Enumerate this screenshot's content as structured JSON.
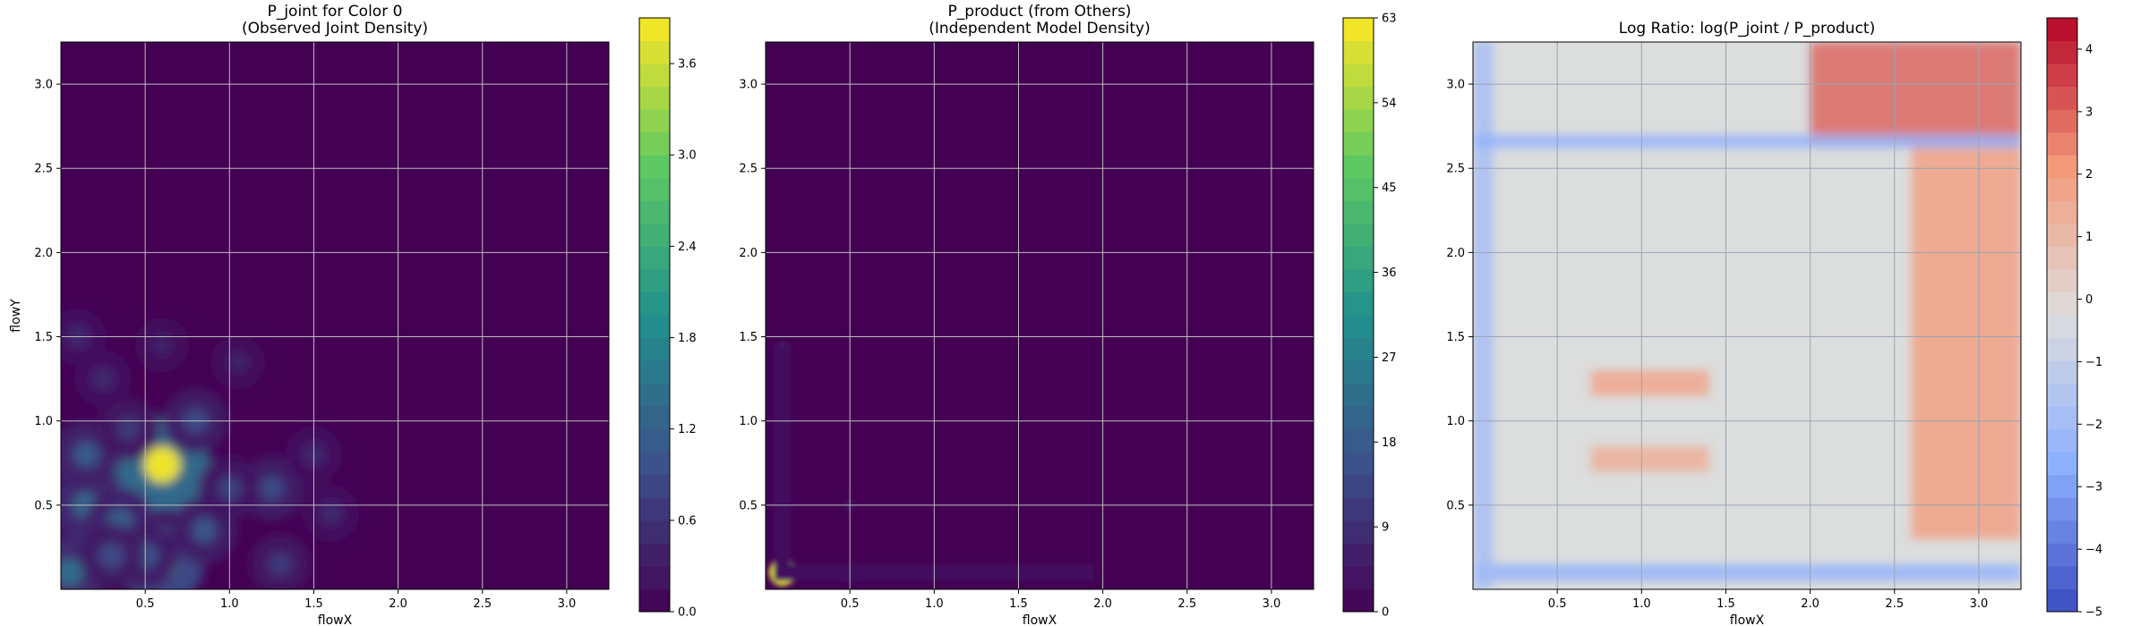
{
  "figure": {
    "background": "#ffffff"
  },
  "chart_data": [
    {
      "type": "heatmap",
      "title_line1": "P_joint for Color 0",
      "title_line2": "(Observed Joint Density)",
      "xlabel": "flowX",
      "ylabel": "flowY",
      "xlim": [
        0.0,
        3.25
      ],
      "ylim": [
        0.0,
        3.25
      ],
      "xticks": [
        "0.5",
        "1.0",
        "1.5",
        "2.0",
        "2.5",
        "3.0"
      ],
      "yticks": [
        "0.5",
        "1.0",
        "1.5",
        "2.0",
        "2.5",
        "3.0"
      ],
      "grid": true,
      "colormap": "viridis",
      "colorbar": {
        "min": 0.0,
        "max": 3.9,
        "ticks": [
          "0.0",
          "0.6",
          "1.2",
          "1.8",
          "2.4",
          "3.0",
          "3.6"
        ]
      },
      "hotspots": [
        {
          "x": 0.6,
          "y": 0.74,
          "v": 3.8
        },
        {
          "x": 0.6,
          "y": 0.15,
          "v": 2.4
        },
        {
          "x": 0.05,
          "y": 0.1,
          "v": 1.4
        },
        {
          "x": 0.15,
          "y": 0.5,
          "v": 1.3
        },
        {
          "x": 0.35,
          "y": 0.4,
          "v": 1.2
        },
        {
          "x": 0.15,
          "y": 0.8,
          "v": 1.1
        },
        {
          "x": 0.85,
          "y": 0.35,
          "v": 1.0
        },
        {
          "x": 0.8,
          "y": 1.0,
          "v": 0.9
        },
        {
          "x": 1.25,
          "y": 0.6,
          "v": 0.9
        },
        {
          "x": 1.3,
          "y": 0.15,
          "v": 0.7
        },
        {
          "x": 0.4,
          "y": 0.95,
          "v": 0.7
        },
        {
          "x": 0.1,
          "y": 1.5,
          "v": 0.5
        },
        {
          "x": 1.0,
          "y": 0.6,
          "v": 0.8
        },
        {
          "x": 0.25,
          "y": 1.25,
          "v": 0.5
        },
        {
          "x": 0.6,
          "y": 1.45,
          "v": 0.4
        },
        {
          "x": 1.05,
          "y": 1.35,
          "v": 0.4
        },
        {
          "x": 1.5,
          "y": 0.8,
          "v": 0.5
        },
        {
          "x": 0.5,
          "y": 0.2,
          "v": 1.0
        },
        {
          "x": 1.6,
          "y": 0.45,
          "v": 0.5
        },
        {
          "x": 0.3,
          "y": 0.2,
          "v": 0.9
        }
      ]
    },
    {
      "type": "heatmap",
      "title_line1": "P_product (from Others)",
      "title_line2": "(Independent Model Density)",
      "xlabel": "flowX",
      "ylabel": "",
      "xlim": [
        0.0,
        3.25
      ],
      "ylim": [
        0.0,
        3.25
      ],
      "xticks": [
        "0.5",
        "1.0",
        "1.5",
        "2.0",
        "2.5",
        "3.0"
      ],
      "yticks": [
        "0.5",
        "1.0",
        "1.5",
        "2.0",
        "2.5",
        "3.0"
      ],
      "grid": true,
      "colormap": "viridis",
      "colorbar": {
        "min": 0,
        "max": 63,
        "ticks": [
          "0",
          "9",
          "18",
          "27",
          "36",
          "45",
          "54",
          "63"
        ]
      },
      "hotspots": [
        {
          "x": 0.1,
          "y": 0.1,
          "v": 60
        },
        {
          "x": 0.1,
          "y": 0.5,
          "v": 14
        },
        {
          "x": 0.5,
          "y": 0.1,
          "v": 14
        },
        {
          "x": 0.1,
          "y": 0.25,
          "v": 9
        },
        {
          "x": 0.25,
          "y": 0.1,
          "v": 9
        },
        {
          "x": 0.1,
          "y": 0.75,
          "v": 8
        },
        {
          "x": 0.75,
          "y": 0.1,
          "v": 8
        },
        {
          "x": 0.1,
          "y": 1.0,
          "v": 6
        },
        {
          "x": 1.0,
          "y": 0.1,
          "v": 6
        },
        {
          "x": 0.1,
          "y": 1.42,
          "v": 7
        },
        {
          "x": 1.45,
          "y": 0.1,
          "v": 7
        },
        {
          "x": 1.25,
          "y": 0.1,
          "v": 4
        },
        {
          "x": 0.1,
          "y": 1.25,
          "v": 4
        },
        {
          "x": 0.5,
          "y": 0.5,
          "v": 3
        },
        {
          "x": 1.9,
          "y": 0.1,
          "v": 3
        }
      ]
    },
    {
      "type": "heatmap",
      "title_line1": "Log Ratio: log(P_joint / P_product)",
      "title_line2": "",
      "xlabel": "flowX",
      "ylabel": "",
      "xlim": [
        0.0,
        3.25
      ],
      "ylim": [
        0.0,
        3.25
      ],
      "xticks": [
        "0.5",
        "1.0",
        "1.5",
        "2.0",
        "2.5",
        "3.0"
      ],
      "yticks": [
        "0.5",
        "1.0",
        "1.5",
        "2.0",
        "2.5",
        "3.0"
      ],
      "grid": true,
      "colormap": "coolwarm",
      "colorbar": {
        "min": -5,
        "max": 4.5,
        "ticks": [
          "−5",
          "−4",
          "−3",
          "−2",
          "−1",
          "0",
          "1",
          "2",
          "3",
          "4"
        ]
      },
      "description_regions": [
        {
          "x0": 2.0,
          "x1": 3.25,
          "y0": 2.65,
          "y1": 3.25,
          "v": 3.0
        },
        {
          "x0": 2.6,
          "x1": 3.25,
          "y0": 0.3,
          "y1": 2.65,
          "v": 2.0
        },
        {
          "x0": 0.0,
          "x1": 3.25,
          "y0": 0.05,
          "y1": 0.15,
          "v": -2.5
        },
        {
          "x0": 0.0,
          "x1": 0.12,
          "y0": 0.0,
          "y1": 3.25,
          "v": -2.0
        },
        {
          "x0": 0.0,
          "x1": 3.25,
          "y0": 2.62,
          "y1": 2.7,
          "v": -2.5
        },
        {
          "x0": 0.7,
          "x1": 1.4,
          "y0": 1.15,
          "y1": 1.3,
          "v": 1.8
        },
        {
          "x0": 0.7,
          "x1": 1.4,
          "y0": 0.7,
          "y1": 0.85,
          "v": 1.5
        }
      ]
    }
  ]
}
